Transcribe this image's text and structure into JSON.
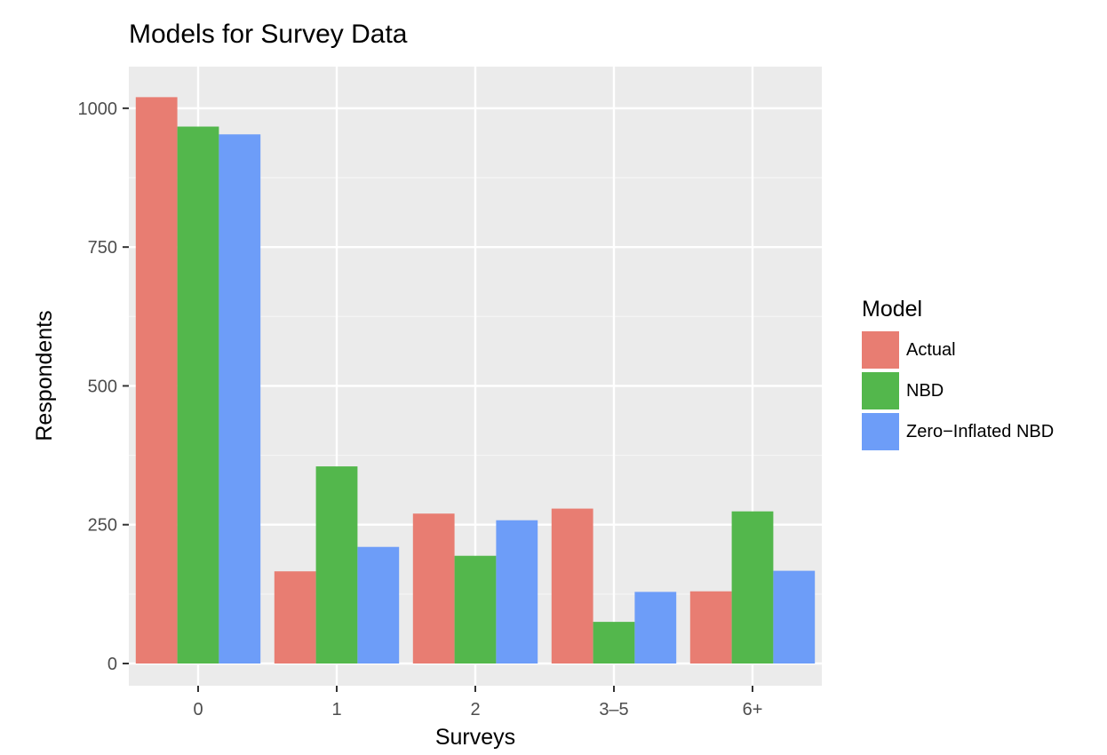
{
  "chart_data": {
    "type": "bar",
    "title": "Models for Survey Data",
    "xlabel": "Surveys",
    "ylabel": "Respondents",
    "categories": [
      "0",
      "1",
      "2",
      "3–5",
      "6+"
    ],
    "yticks": [
      0,
      250,
      500,
      750,
      1000
    ],
    "ylim": [
      -40,
      1075
    ],
    "grid": true,
    "legend": {
      "title": "Model",
      "position": "right"
    },
    "series": [
      {
        "name": "Actual",
        "color": "#E87D72",
        "values": [
          1020,
          166,
          270,
          279,
          130
        ]
      },
      {
        "name": "NBD",
        "color": "#53B74C",
        "values": [
          967,
          355,
          194,
          75,
          274
        ]
      },
      {
        "name": "Zero−Inflated NBD",
        "color": "#6D9DF8",
        "values": [
          953,
          210,
          258,
          129,
          167
        ]
      }
    ]
  }
}
